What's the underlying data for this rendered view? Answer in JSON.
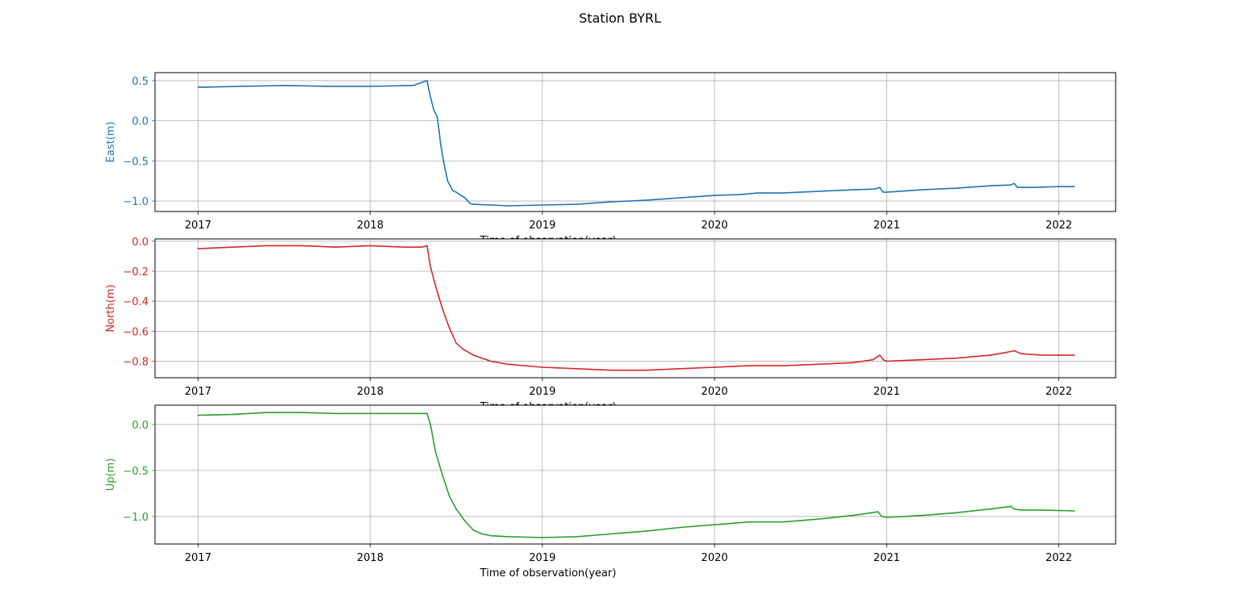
{
  "figure": {
    "title": "Station BYRL"
  },
  "chart_data": [
    {
      "type": "line",
      "title": "",
      "xlabel": "Time of observation(year)",
      "ylabel": "East(m)",
      "color": "#1f77b4",
      "xlim": [
        2016.75,
        2022.33
      ],
      "ylim": [
        -1.13,
        0.6
      ],
      "xticks": [
        2017,
        2018,
        2019,
        2020,
        2021,
        2022
      ],
      "yticks": [
        0.5,
        0.0,
        -0.5,
        -1.0
      ],
      "ytick_labels": [
        "0.5",
        "0.0",
        "−0.5",
        "−1.0"
      ],
      "grid": true,
      "series": [
        {
          "x": [
            2017.0,
            2017.05,
            2017.25,
            2017.5,
            2017.75,
            2018.0,
            2018.25,
            2018.33,
            2018.35,
            2018.37,
            2018.39,
            2018.41,
            2018.43,
            2018.45,
            2018.48,
            2018.5,
            2018.52,
            2018.55,
            2018.58,
            2018.6,
            2018.7,
            2018.8,
            2019.0,
            2019.2,
            2019.4,
            2019.6,
            2019.8,
            2020.0,
            2020.15,
            2020.25,
            2020.4,
            2020.6,
            2020.8,
            2020.93,
            2020.96,
            2020.98,
            2021.0,
            2021.2,
            2021.4,
            2021.6,
            2021.72,
            2021.74,
            2021.76,
            2021.85,
            2022.0,
            2022.09
          ],
          "y": [
            0.42,
            0.42,
            0.43,
            0.44,
            0.43,
            0.43,
            0.44,
            0.5,
            0.3,
            0.13,
            0.05,
            -0.3,
            -0.55,
            -0.75,
            -0.87,
            -0.89,
            -0.92,
            -0.96,
            -1.03,
            -1.04,
            -1.05,
            -1.06,
            -1.05,
            -1.04,
            -1.01,
            -0.99,
            -0.96,
            -0.93,
            -0.92,
            -0.9,
            -0.9,
            -0.88,
            -0.86,
            -0.85,
            -0.83,
            -0.89,
            -0.89,
            -0.86,
            -0.84,
            -0.81,
            -0.8,
            -0.78,
            -0.83,
            -0.83,
            -0.82,
            -0.82
          ]
        }
      ]
    },
    {
      "type": "line",
      "title": "",
      "xlabel": "Time of observation(year)",
      "ylabel": "North(m)",
      "color": "#d62728",
      "xlim": [
        2016.75,
        2022.33
      ],
      "ylim": [
        -0.91,
        0.015
      ],
      "xticks": [
        2017,
        2018,
        2019,
        2020,
        2021,
        2022
      ],
      "yticks": [
        0.0,
        -0.2,
        -0.4,
        -0.6,
        -0.8
      ],
      "ytick_labels": [
        "0.0",
        "−0.2",
        "−0.4",
        "−0.6",
        "−0.8"
      ],
      "grid": true,
      "series": [
        {
          "x": [
            2017.0,
            2017.2,
            2017.4,
            2017.6,
            2017.8,
            2018.0,
            2018.2,
            2018.3,
            2018.33,
            2018.35,
            2018.38,
            2018.42,
            2018.46,
            2018.5,
            2018.54,
            2018.6,
            2018.7,
            2018.8,
            2019.0,
            2019.2,
            2019.4,
            2019.6,
            2019.8,
            2020.0,
            2020.2,
            2020.4,
            2020.6,
            2020.8,
            2020.92,
            2020.96,
            2020.98,
            2021.0,
            2021.2,
            2021.4,
            2021.6,
            2021.7,
            2021.74,
            2021.78,
            2021.9,
            2022.09
          ],
          "y": [
            -0.05,
            -0.04,
            -0.03,
            -0.03,
            -0.04,
            -0.03,
            -0.04,
            -0.04,
            -0.03,
            -0.17,
            -0.3,
            -0.45,
            -0.58,
            -0.68,
            -0.72,
            -0.76,
            -0.8,
            -0.82,
            -0.84,
            -0.85,
            -0.86,
            -0.86,
            -0.85,
            -0.84,
            -0.83,
            -0.83,
            -0.82,
            -0.81,
            -0.79,
            -0.76,
            -0.79,
            -0.8,
            -0.79,
            -0.78,
            -0.76,
            -0.74,
            -0.73,
            -0.75,
            -0.76,
            -0.76
          ]
        }
      ]
    },
    {
      "type": "line",
      "title": "",
      "xlabel": "Time of observation(year)",
      "ylabel": "Up(m)",
      "color": "#2ca02c",
      "xlim": [
        2016.75,
        2022.33
      ],
      "ylim": [
        -1.3,
        0.21
      ],
      "xticks": [
        2017,
        2018,
        2019,
        2020,
        2021,
        2022
      ],
      "yticks": [
        0.0,
        -0.5,
        -1.0
      ],
      "ytick_labels": [
        "0.0",
        "−0.5",
        "−1.0"
      ],
      "grid": true,
      "series": [
        {
          "x": [
            2017.0,
            2017.2,
            2017.4,
            2017.6,
            2017.8,
            2018.0,
            2018.2,
            2018.33,
            2018.35,
            2018.38,
            2018.42,
            2018.46,
            2018.5,
            2018.55,
            2018.6,
            2018.65,
            2018.7,
            2018.8,
            2019.0,
            2019.2,
            2019.4,
            2019.6,
            2019.8,
            2020.0,
            2020.2,
            2020.4,
            2020.6,
            2020.8,
            2020.95,
            2020.97,
            2021.0,
            2021.2,
            2021.4,
            2021.6,
            2021.72,
            2021.74,
            2021.78,
            2021.9,
            2022.09
          ],
          "y": [
            0.1,
            0.11,
            0.13,
            0.13,
            0.12,
            0.12,
            0.12,
            0.12,
            0.0,
            -0.3,
            -0.55,
            -0.78,
            -0.92,
            -1.05,
            -1.15,
            -1.19,
            -1.21,
            -1.22,
            -1.23,
            -1.22,
            -1.19,
            -1.16,
            -1.12,
            -1.09,
            -1.06,
            -1.06,
            -1.03,
            -0.99,
            -0.95,
            -1.0,
            -1.01,
            -0.99,
            -0.96,
            -0.92,
            -0.89,
            -0.92,
            -0.93,
            -0.93,
            -0.94
          ]
        }
      ]
    }
  ]
}
